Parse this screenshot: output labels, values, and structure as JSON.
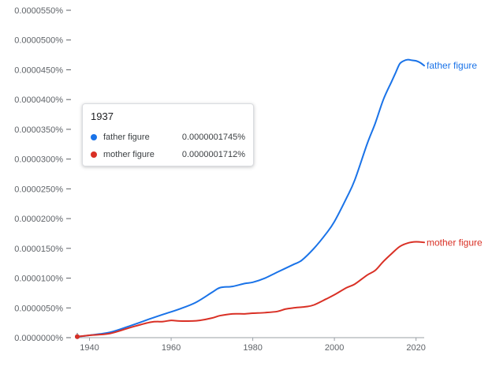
{
  "chart_data": {
    "type": "line",
    "title": "",
    "xlabel": "",
    "ylabel": "",
    "xlim": [
      1937,
      2022
    ],
    "ylim": [
      0,
      5.5e-07
    ],
    "x_ticks": [
      1940,
      1960,
      1980,
      2000,
      2020
    ],
    "x_tick_labels": [
      "1940",
      "1960",
      "1980",
      "2000",
      "2020"
    ],
    "y_ticks": [
      0,
      5e-08,
      1e-07,
      1.5e-07,
      2e-07,
      2.5e-07,
      3e-07,
      3.5e-07,
      4e-07,
      4.5e-07,
      5e-07,
      5.5e-07
    ],
    "y_tick_labels": [
      "0.0000000%",
      "0.0000050%",
      "0.0000100%",
      "0.0000150%",
      "0.0000200%",
      "0.0000250%",
      "0.0000300%",
      "0.0000350%",
      "0.0000400%",
      "0.0000450%",
      "0.0000500%",
      "0.0000550%"
    ],
    "grid": false,
    "series": [
      {
        "name": "father figure",
        "color": "#1a73e8",
        "x": [
          1937,
          1940,
          1945,
          1950,
          1955,
          1958,
          1962,
          1966,
          1970,
          1972,
          1975,
          1978,
          1980,
          1983,
          1986,
          1990,
          1992,
          1995,
          1998,
          2000,
          2003,
          2005,
          2008,
          2010,
          2012,
          2014,
          2015,
          2016,
          2017,
          2018,
          2019,
          2020,
          2021,
          2022
        ],
        "y": [
          1.7e-09,
          4e-09,
          9e-09,
          2e-08,
          3.2e-08,
          3.9e-08,
          4.8e-08,
          5.9e-08,
          7.6e-08,
          8.4e-08,
          8.6e-08,
          9.1e-08,
          9.3e-08,
          1e-07,
          1.1e-07,
          1.23e-07,
          1.3e-07,
          1.5e-07,
          1.75e-07,
          1.95e-07,
          2.35e-07,
          2.65e-07,
          3.25e-07,
          3.6e-07,
          4e-07,
          4.3e-07,
          4.45e-07,
          4.6e-07,
          4.65e-07,
          4.67e-07,
          4.66e-07,
          4.65e-07,
          4.62e-07,
          4.57e-07
        ],
        "end_label": "father figure"
      },
      {
        "name": "mother figure",
        "color": "#d93025",
        "x": [
          1937,
          1940,
          1945,
          1950,
          1955,
          1958,
          1960,
          1962,
          1965,
          1967,
          1970,
          1972,
          1975,
          1978,
          1980,
          1983,
          1986,
          1988,
          1990,
          1993,
          1995,
          1998,
          2000,
          2003,
          2005,
          2008,
          2010,
          2012,
          2014,
          2016,
          2018,
          2020,
          2022
        ],
        "y": [
          1.7e-09,
          4e-09,
          7e-09,
          1.7e-08,
          2.6e-08,
          2.7e-08,
          2.9e-08,
          2.8e-08,
          2.8e-08,
          2.9e-08,
          3.3e-08,
          3.7e-08,
          4e-08,
          4e-08,
          4.1e-08,
          4.2e-08,
          4.4e-08,
          4.8e-08,
          5e-08,
          5.2e-08,
          5.5e-08,
          6.5e-08,
          7.2e-08,
          8.4e-08,
          9e-08,
          1.05e-07,
          1.13e-07,
          1.28e-07,
          1.41e-07,
          1.53e-07,
          1.59e-07,
          1.61e-07,
          1.6e-07
        ],
        "end_label": "mother figure"
      }
    ]
  },
  "tooltip": {
    "year": "1937",
    "rows": [
      {
        "name": "father figure",
        "value": "0.0000001745%",
        "color": "#1a73e8"
      },
      {
        "name": "mother figure",
        "value": "0.0000001712%",
        "color": "#d93025"
      }
    ]
  }
}
